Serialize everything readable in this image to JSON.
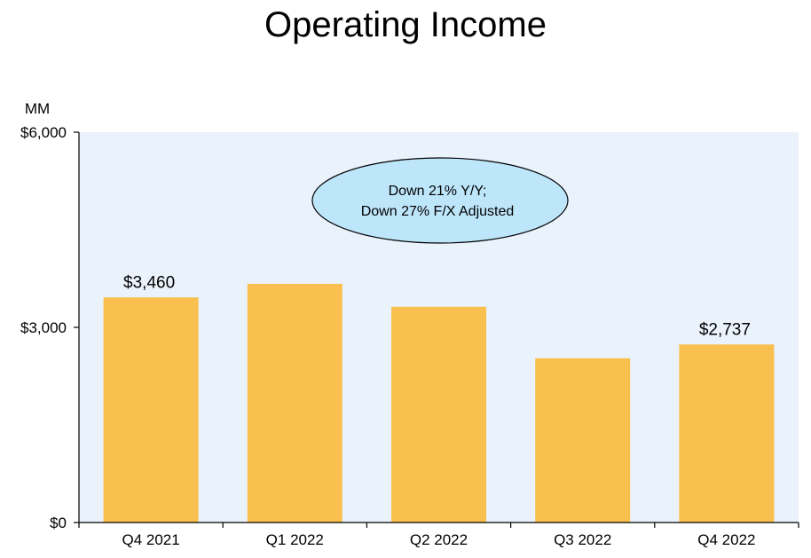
{
  "chart_data": {
    "type": "bar",
    "title": "Operating Income",
    "unit_label": "MM",
    "categories": [
      "Q4 2021",
      "Q1 2022",
      "Q2 2022",
      "Q3 2022",
      "Q4 2022"
    ],
    "values": [
      3460,
      3669,
      3317,
      2525,
      2737
    ],
    "data_labels": [
      "$3,460",
      "",
      "",
      "",
      "$2,737"
    ],
    "ylim": [
      0,
      6000
    ],
    "yticks": [
      0,
      3000,
      6000
    ],
    "ytick_labels": [
      "$0",
      "$3,000",
      "$6,000"
    ],
    "annotation": [
      "Down 21% Y/Y;",
      "Down 27% F/X Adjusted"
    ],
    "grid": false,
    "colors": {
      "bar": "#F9C04F",
      "plot_background": "#EAF2FC",
      "annotation_fill": "#BEE6FA",
      "axis": "#000000"
    }
  }
}
